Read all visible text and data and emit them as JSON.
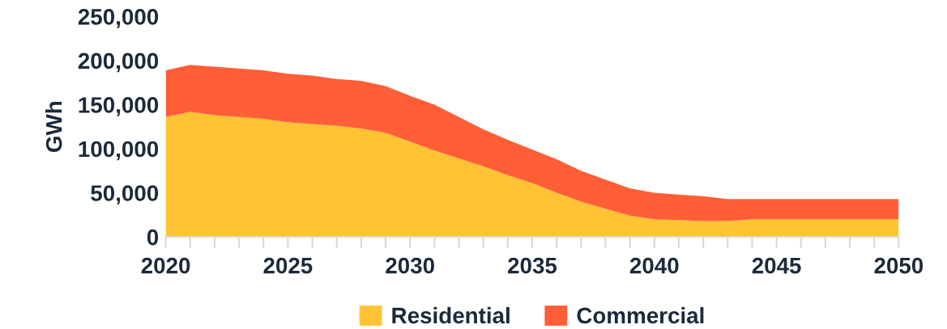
{
  "chart_data": {
    "type": "area",
    "stacked": true,
    "ylabel": "GWh",
    "x": [
      2020,
      2021,
      2022,
      2023,
      2024,
      2025,
      2026,
      2027,
      2028,
      2029,
      2030,
      2031,
      2032,
      2033,
      2034,
      2035,
      2036,
      2037,
      2038,
      2039,
      2040,
      2041,
      2042,
      2043,
      2044,
      2045,
      2046,
      2047,
      2048,
      2049,
      2050
    ],
    "series": [
      {
        "name": "Residential",
        "color": "#ffc333",
        "values": [
          136000,
          142000,
          138000,
          136000,
          134000,
          130000,
          128000,
          126000,
          123000,
          118000,
          108000,
          98000,
          89000,
          80000,
          70000,
          61000,
          50000,
          40000,
          32000,
          24000,
          20000,
          19000,
          18000,
          18000,
          20000,
          20000,
          20000,
          20000,
          20000,
          20000,
          20000
        ]
      },
      {
        "name": "Commercial",
        "color": "#ff5e36",
        "values": [
          53000,
          53000,
          55000,
          55000,
          55000,
          55000,
          55000,
          53000,
          54000,
          53000,
          52000,
          52000,
          47000,
          42000,
          40000,
          38000,
          38000,
          35000,
          33000,
          31000,
          30000,
          29000,
          28000,
          25000,
          23000,
          23000,
          23000,
          23000,
          23000,
          23000,
          23000
        ]
      }
    ],
    "xlim": [
      2020,
      2050
    ],
    "xticks": [
      2020,
      2025,
      2030,
      2035,
      2040,
      2045,
      2050
    ],
    "ylim": [
      0,
      250000
    ],
    "yticks": [
      {
        "value": 0,
        "label": "0"
      },
      {
        "value": 50000,
        "label": "50,000"
      },
      {
        "value": 100000,
        "label": "100,000"
      },
      {
        "value": 150000,
        "label": "150,000"
      },
      {
        "value": 200000,
        "label": "200,000"
      },
      {
        "value": 250000,
        "label": "250,000"
      }
    ],
    "grid": false,
    "legend": "bottom"
  }
}
